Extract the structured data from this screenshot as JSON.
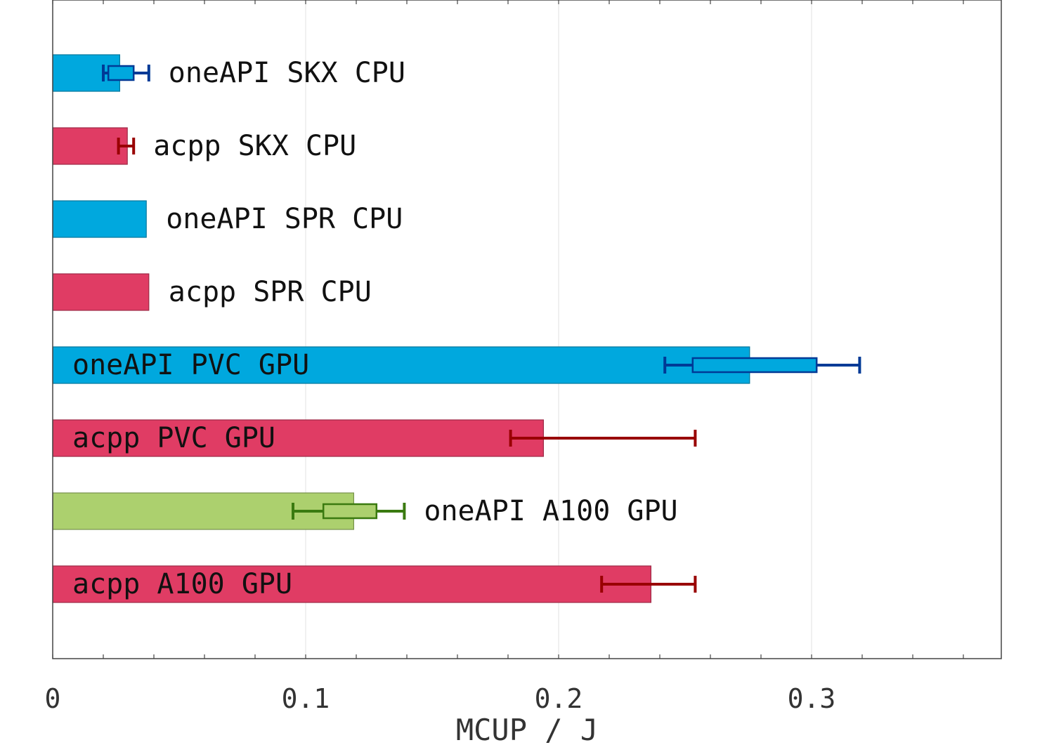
{
  "chart_data": {
    "type": "bar",
    "orientation": "horizontal",
    "title": "",
    "xlabel": "MCUP / J",
    "ylabel": "",
    "xlim": [
      0,
      0.375
    ],
    "xticks": [
      0,
      0.1,
      0.2,
      0.3
    ],
    "xtick_labels": [
      "0",
      "0.1",
      "0.2",
      "0.3"
    ],
    "grid": true,
    "legend": "none",
    "bars": [
      {
        "label": "oneAPI SKX CPU",
        "value": 0.0265,
        "err_low": 0.02,
        "err_high": 0.038,
        "box_low": 0.022,
        "box_high": 0.032,
        "color": "#00a8de",
        "err_color": "#003a96"
      },
      {
        "label": "acpp SKX CPU",
        "value": 0.0295,
        "err_low": 0.026,
        "err_high": 0.032,
        "color": "#e03c64",
        "err_color": "#990000"
      },
      {
        "label": "oneAPI SPR CPU",
        "value": 0.037,
        "color": "#00a8de"
      },
      {
        "label": "acpp SPR CPU",
        "value": 0.038,
        "color": "#e03c64"
      },
      {
        "label": "oneAPI PVC GPU",
        "value": 0.2755,
        "err_low": 0.242,
        "err_high": 0.319,
        "box_low": 0.253,
        "box_high": 0.302,
        "color": "#00a8de",
        "err_color": "#003a96"
      },
      {
        "label": "acpp PVC GPU",
        "value": 0.194,
        "err_low": 0.181,
        "err_high": 0.254,
        "color": "#e03c64",
        "err_color": "#990000"
      },
      {
        "label": "oneAPI A100 GPU",
        "value": 0.119,
        "err_low": 0.095,
        "err_high": 0.139,
        "box_low": 0.107,
        "box_high": 0.128,
        "color": "#acd06e",
        "err_color": "#3a7a10"
      },
      {
        "label": "acpp A100 GPU",
        "value": 0.2365,
        "err_low": 0.217,
        "err_high": 0.254,
        "color": "#e03c64",
        "err_color": "#990000"
      }
    ]
  }
}
